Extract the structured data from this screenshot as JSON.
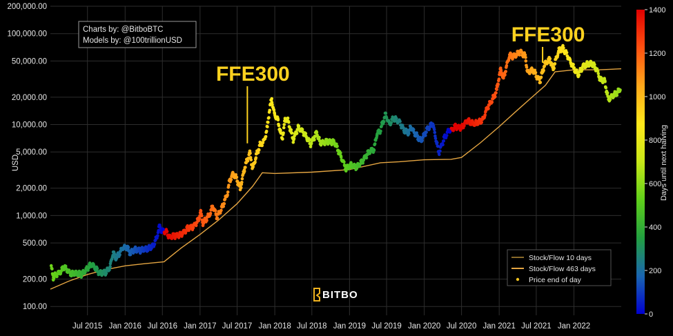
{
  "chart_data": {
    "type": "scatter",
    "y_scale": "log",
    "ylabel": "USD",
    "ylim": [
      80,
      200000
    ],
    "xlim": [
      "2015-01-01",
      "2022-08-20"
    ],
    "y_ticks": [
      100,
      200,
      500,
      1000,
      2000,
      5000,
      10000,
      20000,
      50000,
      100000,
      200000
    ],
    "y_tick_labels": [
      "100.00",
      "200.00",
      "500.00",
      "1,000.00",
      "2,000.00",
      "5,000.00",
      "10,000.00",
      "20,000.00",
      "50,000.00",
      "100,000.00",
      "200,000.00"
    ],
    "x_ticks": [
      {
        "date": "2015-07-01",
        "label": "Jul 2015"
      },
      {
        "date": "2016-01-01",
        "label": "Jan 2016"
      },
      {
        "date": "2016-07-01",
        "label": "Jul 2016"
      },
      {
        "date": "2017-01-01",
        "label": "Jan 2017"
      },
      {
        "date": "2017-07-01",
        "label": "Jul 2017"
      },
      {
        "date": "2018-01-01",
        "label": "Jan 2018"
      },
      {
        "date": "2018-07-01",
        "label": "Jul 2018"
      },
      {
        "date": "2019-01-01",
        "label": "Jan 2019"
      },
      {
        "date": "2019-07-01",
        "label": "Jul 2019"
      },
      {
        "date": "2020-01-01",
        "label": "Jan 2020"
      },
      {
        "date": "2020-07-01",
        "label": "Jul 2020"
      },
      {
        "date": "2021-01-01",
        "label": "Jan 2021"
      },
      {
        "date": "2021-07-01",
        "label": "Jul 2021"
      },
      {
        "date": "2022-01-01",
        "label": "Jan 2022"
      }
    ],
    "grid": true,
    "legend_position": "bottom-right",
    "series": [
      {
        "name": "Stock/Flow 10 days",
        "type": "line",
        "color": "#8a6a2a",
        "points": []
      },
      {
        "name": "Stock/Flow 463 days",
        "type": "line",
        "color": "#e6a642",
        "points": [
          [
            "2015-01-01",
            155
          ],
          [
            "2015-04-01",
            190
          ],
          [
            "2015-07-01",
            225
          ],
          [
            "2015-10-01",
            255
          ],
          [
            "2016-01-01",
            280
          ],
          [
            "2016-04-01",
            295
          ],
          [
            "2016-07-09",
            310
          ],
          [
            "2016-10-01",
            440
          ],
          [
            "2017-01-01",
            620
          ],
          [
            "2017-04-01",
            890
          ],
          [
            "2017-07-01",
            1350
          ],
          [
            "2017-09-15",
            2100
          ],
          [
            "2017-11-01",
            2950
          ],
          [
            "2018-01-01",
            2900
          ],
          [
            "2018-07-01",
            3000
          ],
          [
            "2019-01-01",
            3200
          ],
          [
            "2019-06-01",
            3800
          ],
          [
            "2019-09-01",
            3900
          ],
          [
            "2020-01-01",
            4100
          ],
          [
            "2020-05-11",
            4150
          ],
          [
            "2020-07-01",
            4350
          ],
          [
            "2020-10-01",
            6300
          ],
          [
            "2021-01-01",
            9500
          ],
          [
            "2021-04-01",
            14500
          ],
          [
            "2021-07-01",
            22000
          ],
          [
            "2021-08-15",
            27000
          ],
          [
            "2021-10-01",
            38000
          ],
          [
            "2022-01-01",
            40000
          ],
          [
            "2022-05-01",
            40000
          ],
          [
            "2022-08-20",
            41000
          ]
        ]
      },
      {
        "name": "Price end of day",
        "type": "scatter",
        "color": "#f0c21f",
        "color_by": "Days until next halving",
        "points": [
          [
            "2015-01-05",
            270
          ],
          [
            "2015-01-15",
            210
          ],
          [
            "2015-02-01",
            225
          ],
          [
            "2015-02-20",
            240
          ],
          [
            "2015-03-10",
            275
          ],
          [
            "2015-03-25",
            250
          ],
          [
            "2015-04-15",
            225
          ],
          [
            "2015-05-01",
            235
          ],
          [
            "2015-06-01",
            225
          ],
          [
            "2015-06-20",
            245
          ],
          [
            "2015-07-10",
            280
          ],
          [
            "2015-07-25",
            290
          ],
          [
            "2015-08-15",
            255
          ],
          [
            "2015-09-01",
            230
          ],
          [
            "2015-10-01",
            240
          ],
          [
            "2015-10-20",
            270
          ],
          [
            "2015-11-04",
            400
          ],
          [
            "2015-11-15",
            340
          ],
          [
            "2015-12-01",
            370
          ],
          [
            "2015-12-20",
            440
          ],
          [
            "2016-01-10",
            450
          ],
          [
            "2016-01-25",
            390
          ],
          [
            "2016-02-20",
            420
          ],
          [
            "2016-03-15",
            415
          ],
          [
            "2016-04-15",
            430
          ],
          [
            "2016-05-15",
            455
          ],
          [
            "2016-06-05",
            580
          ],
          [
            "2016-06-16",
            760
          ],
          [
            "2016-06-30",
            670
          ],
          [
            "2016-07-20",
            660
          ],
          [
            "2016-08-05",
            580
          ],
          [
            "2016-09-01",
            600
          ],
          [
            "2016-10-01",
            615
          ],
          [
            "2016-11-01",
            720
          ],
          [
            "2016-12-01",
            760
          ],
          [
            "2016-12-25",
            900
          ],
          [
            "2017-01-04",
            1120
          ],
          [
            "2017-01-15",
            820
          ],
          [
            "2017-02-15",
            1010
          ],
          [
            "2017-03-05",
            1270
          ],
          [
            "2017-03-25",
            960
          ],
          [
            "2017-04-20",
            1240
          ],
          [
            "2017-05-15",
            1750
          ],
          [
            "2017-05-25",
            2400
          ],
          [
            "2017-06-12",
            2900
          ],
          [
            "2017-07-01",
            2500
          ],
          [
            "2017-07-16",
            1950
          ],
          [
            "2017-08-05",
            3200
          ],
          [
            "2017-08-20",
            4100
          ],
          [
            "2017-09-01",
            4900
          ],
          [
            "2017-09-15",
            3250
          ],
          [
            "2017-10-01",
            4400
          ],
          [
            "2017-10-20",
            5900
          ],
          [
            "2017-11-10",
            6600
          ],
          [
            "2017-11-26",
            9300
          ],
          [
            "2017-12-07",
            15000
          ],
          [
            "2017-12-17",
            19300
          ],
          [
            "2017-12-30",
            13000
          ],
          [
            "2018-01-16",
            11300
          ],
          [
            "2018-02-06",
            6900
          ],
          [
            "2018-02-20",
            11200
          ],
          [
            "2018-03-05",
            11500
          ],
          [
            "2018-04-01",
            6800
          ],
          [
            "2018-04-25",
            9300
          ],
          [
            "2018-05-20",
            8300
          ],
          [
            "2018-06-25",
            6100
          ],
          [
            "2018-07-25",
            8200
          ],
          [
            "2018-08-10",
            6300
          ],
          [
            "2018-09-20",
            6500
          ],
          [
            "2018-10-20",
            6400
          ],
          [
            "2018-11-20",
            4500
          ],
          [
            "2018-12-15",
            3250
          ],
          [
            "2019-01-10",
            3600
          ],
          [
            "2019-02-05",
            3400
          ],
          [
            "2019-03-01",
            3850
          ],
          [
            "2019-04-02",
            4900
          ],
          [
            "2019-05-01",
            5400
          ],
          [
            "2019-05-15",
            7900
          ],
          [
            "2019-06-01",
            8600
          ],
          [
            "2019-06-26",
            13000
          ],
          [
            "2019-07-15",
            10100
          ],
          [
            "2019-08-05",
            11800
          ],
          [
            "2019-09-05",
            10500
          ],
          [
            "2019-09-25",
            8500
          ],
          [
            "2019-10-20",
            8200
          ],
          [
            "2019-10-26",
            9500
          ],
          [
            "2019-11-20",
            7800
          ],
          [
            "2019-12-17",
            6600
          ],
          [
            "2020-01-15",
            8800
          ],
          [
            "2020-02-12",
            10300
          ],
          [
            "2020-03-12",
            4900
          ],
          [
            "2020-04-05",
            6800
          ],
          [
            "2020-04-30",
            8700
          ],
          [
            "2020-05-11",
            8600
          ],
          [
            "2020-06-01",
            9500
          ],
          [
            "2020-07-01",
            9200
          ],
          [
            "2020-07-28",
            11000
          ],
          [
            "2020-09-05",
            10200
          ],
          [
            "2020-10-15",
            11400
          ],
          [
            "2020-11-05",
            15500
          ],
          [
            "2020-12-01",
            19000
          ],
          [
            "2020-12-20",
            23800
          ],
          [
            "2021-01-08",
            40700
          ],
          [
            "2021-01-22",
            32000
          ],
          [
            "2021-02-20",
            57500
          ],
          [
            "2021-03-15",
            56000
          ],
          [
            "2021-04-14",
            63500
          ],
          [
            "2021-05-10",
            55800
          ],
          [
            "2021-05-19",
            37000
          ],
          [
            "2021-06-15",
            40000
          ],
          [
            "2021-06-30",
            35000
          ],
          [
            "2021-07-20",
            29800
          ],
          [
            "2021-08-10",
            45500
          ],
          [
            "2021-09-06",
            52600
          ],
          [
            "2021-09-21",
            40500
          ],
          [
            "2021-10-20",
            66000
          ],
          [
            "2021-11-10",
            68800
          ],
          [
            "2021-12-01",
            57000
          ],
          [
            "2021-12-20",
            46500
          ],
          [
            "2022-01-22",
            35000
          ],
          [
            "2022-02-15",
            44000
          ],
          [
            "2022-03-28",
            47500
          ],
          [
            "2022-04-20",
            41500
          ],
          [
            "2022-05-10",
            31000
          ],
          [
            "2022-06-01",
            30000
          ],
          [
            "2022-06-18",
            19000
          ],
          [
            "2022-07-15",
            21000
          ],
          [
            "2022-08-15",
            24000
          ]
        ]
      }
    ],
    "colorbar": {
      "title": "Days until next halving",
      "min": 0,
      "max": 1400,
      "ticks": [
        0,
        200,
        400,
        600,
        800,
        1000,
        1200,
        1400
      ],
      "colors": [
        "#0000d0",
        "#1a66b0",
        "#22a040",
        "#5fd01a",
        "#c8e818",
        "#ffe81a",
        "#ffa81a",
        "#ff5010",
        "#e00000"
      ]
    },
    "annotations": [
      {
        "text": "FFE300",
        "date": "2017-08-20",
        "value": 5600
      },
      {
        "text": "FFE300",
        "date": "2021-08-01",
        "value": 43000
      }
    ],
    "credits": [
      "Charts by: @BitboBTC",
      "Models by: @100trillionUSD"
    ],
    "watermark": "BITBO"
  }
}
